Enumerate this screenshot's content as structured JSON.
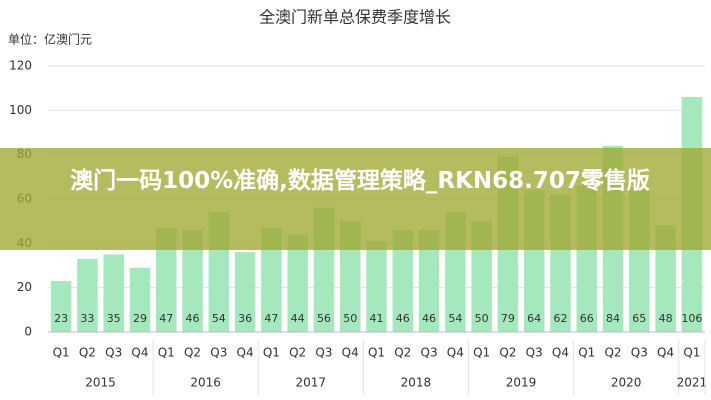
{
  "chart_data": {
    "type": "bar",
    "title": "全澳门新单总保费季度增长",
    "unit_label": "单位：亿澳门元",
    "groups": [
      {
        "name": "2015",
        "categories": [
          "Q1",
          "Q2",
          "Q3",
          "Q4"
        ]
      },
      {
        "name": "2016",
        "categories": [
          "Q1",
          "Q2",
          "Q3",
          "Q4"
        ]
      },
      {
        "name": "2017",
        "categories": [
          "Q1",
          "Q2",
          "Q3",
          "Q4"
        ]
      },
      {
        "name": "2018",
        "categories": [
          "Q1",
          "Q2",
          "Q3",
          "Q4"
        ]
      },
      {
        "name": "2019",
        "categories": [
          "Q1",
          "Q2",
          "Q3",
          "Q4"
        ]
      },
      {
        "name": "2020",
        "categories": [
          "Q1",
          "Q2",
          "Q3",
          "Q4"
        ]
      },
      {
        "name": "2021",
        "categories": [
          "Q1"
        ]
      }
    ],
    "values": [
      23,
      33,
      35,
      29,
      47,
      46,
      54,
      36,
      47,
      44,
      56,
      50,
      41,
      46,
      46,
      54,
      50,
      79,
      64,
      62,
      66,
      84,
      65,
      48,
      106
    ],
    "color": "#a6e8bd",
    "ylim": [
      0,
      120
    ],
    "yticks": [
      0,
      20,
      40,
      60,
      80,
      100,
      120
    ],
    "grid": true
  },
  "banner": {
    "text": "澳门一码100%准确,数据管理策略_RKN68.707零售版"
  }
}
